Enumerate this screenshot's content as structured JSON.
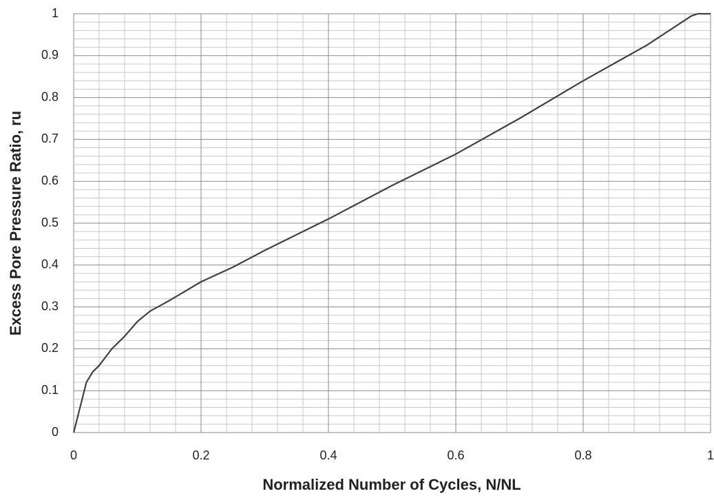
{
  "chart_data": {
    "type": "line",
    "xlabel": "Normalized Number of Cycles, N/NL",
    "ylabel": "Excess Pore Pressure Ratio, ru",
    "x": [
      0,
      0.01,
      0.02,
      0.03,
      0.04,
      0.06,
      0.08,
      0.1,
      0.12,
      0.15,
      0.2,
      0.25,
      0.3,
      0.4,
      0.5,
      0.6,
      0.7,
      0.8,
      0.9,
      0.97,
      0.98,
      1
    ],
    "series": [
      {
        "color": "#404040",
        "values": [
          0,
          0.06,
          0.12,
          0.145,
          0.16,
          0.2,
          0.23,
          0.265,
          0.29,
          0.315,
          0.36,
          0.395,
          0.435,
          0.51,
          0.59,
          0.665,
          0.75,
          0.84,
          0.925,
          0.995,
          1,
          1
        ]
      }
    ],
    "xlim": [
      0,
      1
    ],
    "xticks": [
      0,
      0.2,
      0.4,
      0.6,
      0.8,
      1
    ],
    "ylim": [
      0,
      1
    ],
    "yticks": [
      0,
      0.1,
      0.2,
      0.3,
      0.4,
      0.5,
      0.6,
      0.7,
      0.8,
      0.9,
      1
    ],
    "grid": true,
    "minor_divisions": {
      "x": 5,
      "y": 5
    }
  }
}
